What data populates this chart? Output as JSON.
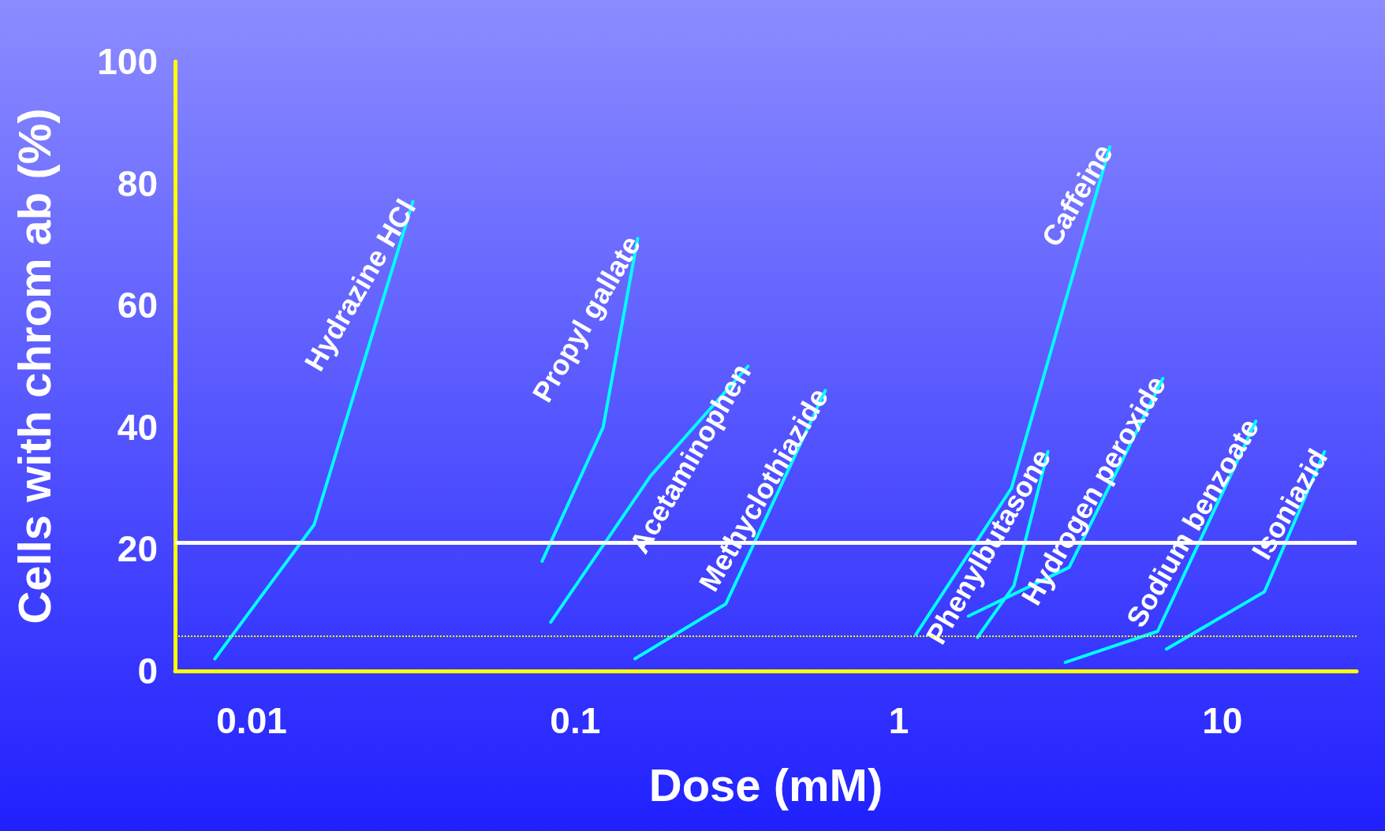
{
  "chart_data": {
    "type": "line",
    "xlabel": "Dose (mM)",
    "ylabel": "Cells with chrom ab (%)",
    "log": "x",
    "xlim": [
      0.0058,
      26
    ],
    "xticks": [
      0.01,
      0.1,
      1,
      10
    ],
    "ylim": [
      0,
      100
    ],
    "yticks": [
      0,
      20,
      40,
      60,
      80,
      100
    ],
    "grid": false,
    "legend": false,
    "marker": "none",
    "line_style": "solid",
    "series": [
      {
        "name": "Hydrazine HCl",
        "color": "#00ffff",
        "x": [
          0.0077,
          0.0156,
          0.0315
        ],
        "values": [
          2,
          24,
          77
        ]
      },
      {
        "name": "Propyl gallate",
        "color": "#00ffff",
        "x": [
          0.079,
          0.122,
          0.156
        ],
        "values": [
          18,
          40,
          71
        ]
      },
      {
        "name": "Acetaminophen",
        "color": "#00ffff",
        "x": [
          0.084,
          0.171,
          0.342
        ],
        "values": [
          8,
          32,
          50
        ]
      },
      {
        "name": "Methyclothiazide",
        "color": "#00ffff",
        "x": [
          0.153,
          0.292,
          0.593
        ],
        "values": [
          2,
          11,
          46
        ]
      },
      {
        "name": "Caffeine",
        "color": "#00ffff",
        "x": [
          1.13,
          2.23,
          4.49
        ],
        "values": [
          6,
          30,
          86
        ]
      },
      {
        "name": "Phenylbutasone",
        "color": "#00ffff",
        "x": [
          1.75,
          2.27,
          2.89
        ],
        "values": [
          5.5,
          14,
          36
        ]
      },
      {
        "name": "Hydrogen peroxide",
        "color": "#00ffff",
        "x": [
          1.64,
          3.36,
          6.55
        ],
        "values": [
          9,
          17,
          48
        ]
      },
      {
        "name": "Sodium benzoate",
        "color": "#00ffff",
        "x": [
          3.27,
          6.31,
          12.7
        ],
        "values": [
          1.4,
          6.5,
          41
        ]
      },
      {
        "name": "Isoniazid",
        "color": "#00ffff",
        "x": [
          6.72,
          13.5,
          20.7
        ],
        "values": [
          3.6,
          13,
          36
        ]
      }
    ],
    "ref_lines": [
      {
        "axis": "y",
        "value": 21,
        "color": "#ffffff",
        "line_style": "solid"
      },
      {
        "axis": "y",
        "value": 5.7,
        "color": "#ffff00",
        "line_style": "dotted"
      }
    ]
  }
}
